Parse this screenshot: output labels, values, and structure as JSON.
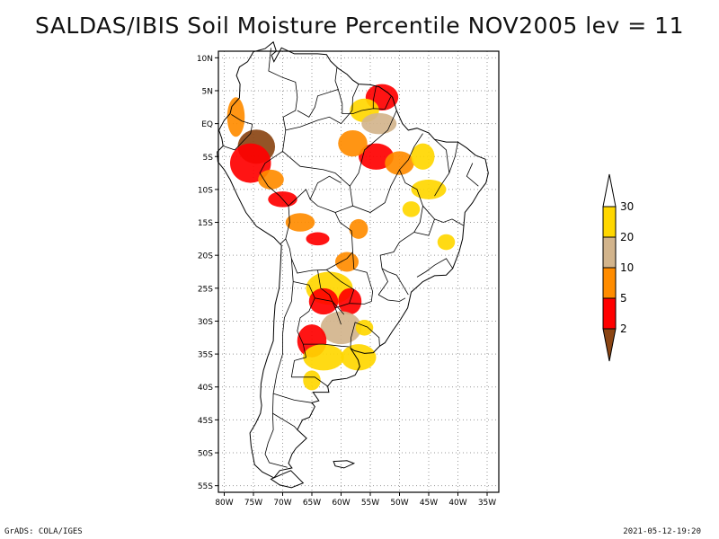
{
  "title": "SALDAS/IBIS Soil Moisture Percentile NOV2005 lev = 11",
  "footer": {
    "left": "GrADS: COLA/IGES",
    "right": "2021-05-12-19:20"
  },
  "map": {
    "lon_range": [
      -81,
      -33
    ],
    "lat_range": [
      -56,
      11
    ],
    "lon_ticks": [
      {
        "v": -80,
        "label": "80W"
      },
      {
        "v": -75,
        "label": "75W"
      },
      {
        "v": -70,
        "label": "70W"
      },
      {
        "v": -65,
        "label": "65W"
      },
      {
        "v": -60,
        "label": "60W"
      },
      {
        "v": -55,
        "label": "55W"
      },
      {
        "v": -50,
        "label": "50W"
      },
      {
        "v": -45,
        "label": "45W"
      },
      {
        "v": -40,
        "label": "40W"
      },
      {
        "v": -35,
        "label": "35W"
      }
    ],
    "lat_ticks": [
      {
        "v": 10,
        "label": "10N"
      },
      {
        "v": 5,
        "label": "5N"
      },
      {
        "v": 0,
        "label": "EQ"
      },
      {
        "v": -5,
        "label": "5S"
      },
      {
        "v": -10,
        "label": "10S"
      },
      {
        "v": -15,
        "label": "15S"
      },
      {
        "v": -20,
        "label": "20S"
      },
      {
        "v": -25,
        "label": "25S"
      },
      {
        "v": -30,
        "label": "30S"
      },
      {
        "v": -35,
        "label": "35S"
      },
      {
        "v": -40,
        "label": "40S"
      },
      {
        "v": -45,
        "label": "45S"
      },
      {
        "v": -50,
        "label": "50S"
      },
      {
        "v": -55,
        "label": "55S"
      }
    ]
  },
  "legend": {
    "bins": [
      {
        "label": "",
        "color": "#8b4513"
      },
      {
        "label": "2",
        "color": "#ff0000"
      },
      {
        "label": "5",
        "color": "#ff8c00"
      },
      {
        "label": "10",
        "color": "#d2b48c"
      },
      {
        "label": "20",
        "color": "#ffd700"
      },
      {
        "label": "30",
        "color": "#ffffff"
      }
    ]
  },
  "colors": {
    "brown": "#8b4513",
    "red": "#ff0000",
    "orange": "#ff8c00",
    "tan": "#d2b48c",
    "gold": "#ffd700",
    "outline": "#000000",
    "grid": "#999999"
  },
  "anomaly_regions": [
    {
      "lon": -74.5,
      "lat": -3.5,
      "rx": 3.2,
      "ry": 2.6,
      "color": "brown"
    },
    {
      "lon": -75.5,
      "lat": -6,
      "rx": 3.5,
      "ry": 3,
      "color": "red"
    },
    {
      "lon": -72,
      "lat": -8.5,
      "rx": 2.2,
      "ry": 1.5,
      "color": "orange"
    },
    {
      "lon": -70,
      "lat": -11.5,
      "rx": 2.5,
      "ry": 1.2,
      "color": "red"
    },
    {
      "lon": -67,
      "lat": -15,
      "rx": 2.5,
      "ry": 1.4,
      "color": "orange"
    },
    {
      "lon": -64,
      "lat": -17.5,
      "rx": 2,
      "ry": 1,
      "color": "red"
    },
    {
      "lon": -78,
      "lat": 1,
      "rx": 1.5,
      "ry": 3,
      "color": "orange"
    },
    {
      "lon": -53,
      "lat": 4,
      "rx": 2.8,
      "ry": 2,
      "color": "red"
    },
    {
      "lon": -56,
      "lat": 2,
      "rx": 2.5,
      "ry": 1.8,
      "color": "gold"
    },
    {
      "lon": -53.5,
      "lat": 0,
      "rx": 3,
      "ry": 1.6,
      "color": "tan"
    },
    {
      "lon": -54,
      "lat": -5,
      "rx": 3,
      "ry": 2,
      "color": "red"
    },
    {
      "lon": -50,
      "lat": -6,
      "rx": 2.5,
      "ry": 1.8,
      "color": "orange"
    },
    {
      "lon": -58,
      "lat": -3,
      "rx": 2.5,
      "ry": 2,
      "color": "orange"
    },
    {
      "lon": -46,
      "lat": -5,
      "rx": 2,
      "ry": 2,
      "color": "gold"
    },
    {
      "lon": -45,
      "lat": -10,
      "rx": 3,
      "ry": 1.5,
      "color": "gold"
    },
    {
      "lon": -57,
      "lat": -16,
      "rx": 1.6,
      "ry": 1.5,
      "color": "orange"
    },
    {
      "lon": -59,
      "lat": -21,
      "rx": 2,
      "ry": 1.5,
      "color": "orange"
    },
    {
      "lon": -62,
      "lat": -25,
      "rx": 4,
      "ry": 2.5,
      "color": "gold"
    },
    {
      "lon": -63,
      "lat": -27,
      "rx": 2.5,
      "ry": 2,
      "color": "red"
    },
    {
      "lon": -58.5,
      "lat": -27,
      "rx": 2,
      "ry": 2,
      "color": "red"
    },
    {
      "lon": -60,
      "lat": -31,
      "rx": 3.5,
      "ry": 2.5,
      "color": "tan"
    },
    {
      "lon": -65,
      "lat": -33,
      "rx": 2.5,
      "ry": 2.5,
      "color": "red"
    },
    {
      "lon": -63,
      "lat": -35.5,
      "rx": 3.5,
      "ry": 2,
      "color": "gold"
    },
    {
      "lon": -57,
      "lat": -35.5,
      "rx": 3,
      "ry": 2,
      "color": "gold"
    },
    {
      "lon": -56,
      "lat": -31,
      "rx": 1.5,
      "ry": 1.2,
      "color": "gold"
    },
    {
      "lon": -65,
      "lat": -39,
      "rx": 1.5,
      "ry": 1.5,
      "color": "gold"
    },
    {
      "lon": -48,
      "lat": -13,
      "rx": 1.5,
      "ry": 1.2,
      "color": "gold"
    },
    {
      "lon": -42,
      "lat": -18,
      "rx": 1.5,
      "ry": 1.2,
      "color": "gold"
    }
  ]
}
